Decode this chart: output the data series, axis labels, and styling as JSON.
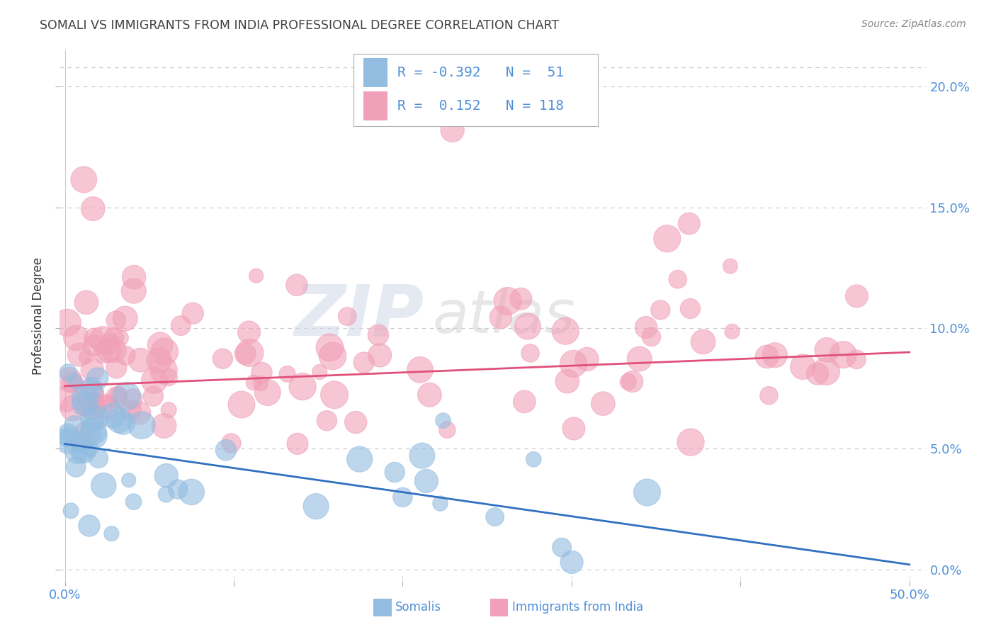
{
  "title": "SOMALI VS IMMIGRANTS FROM INDIA PROFESSIONAL DEGREE CORRELATION CHART",
  "source": "Source: ZipAtlas.com",
  "ylabel": "Professional Degree",
  "xlim": [
    0,
    50
  ],
  "ylim": [
    0,
    20
  ],
  "x_tick_vals": [
    0,
    10,
    20,
    30,
    40,
    50
  ],
  "y_tick_vals": [
    0,
    5,
    10,
    15,
    20
  ],
  "somali_color": "#92bce0",
  "india_color": "#f0a0b8",
  "somali_line_color": "#3070c0",
  "india_line_color": "#e0507a",
  "R_somali": -0.392,
  "N_somali": 51,
  "R_india": 0.152,
  "N_india": 118,
  "watermark_zip": "ZIP",
  "watermark_atlas": "atlas",
  "legend_label_1": "Somalis",
  "legend_label_2": "Immigrants from India",
  "background_color": "#ffffff",
  "grid_color": "#c8c8c8",
  "axis_label_color": "#5090d8",
  "title_color": "#404040",
  "somali_trend_x0": 0,
  "somali_trend_y0": 5.2,
  "somali_trend_x1": 50,
  "somali_trend_y1": 0.2,
  "india_trend_x0": 0,
  "india_trend_y0": 7.6,
  "india_trend_x1": 50,
  "india_trend_y1": 9.0
}
